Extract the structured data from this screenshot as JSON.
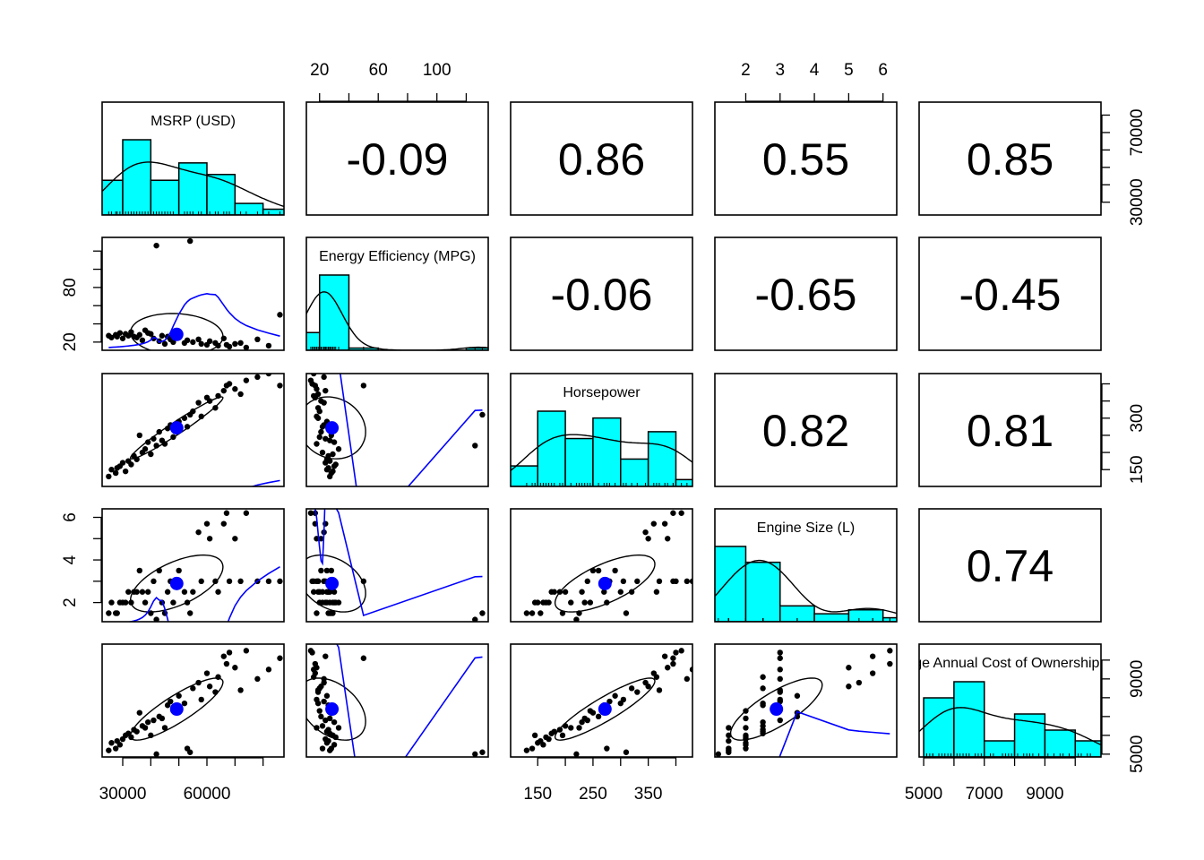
{
  "chart_data": {
    "type": "scatter-matrix",
    "variables": [
      {
        "label": "MSRP (USD)",
        "range": [
          22660,
          87450
        ],
        "hist": {
          "edges": [
            20000,
            30000,
            40000,
            50000,
            60000,
            70000,
            80000,
            90000
          ],
          "counts": [
            6,
            13,
            6,
            9,
            7,
            2,
            1
          ]
        },
        "values": [
          25000,
          26000,
          27500,
          28000,
          29000,
          30000,
          31000,
          32000,
          33000,
          34000,
          35000,
          36000,
          37000,
          38000,
          39000,
          40000,
          41000,
          42000,
          43000,
          44000,
          45000,
          46000,
          47000,
          48000,
          50000,
          52000,
          53000,
          54000,
          55000,
          57000,
          58000,
          60000,
          61000,
          63000,
          64000,
          66000,
          67000,
          68000,
          70000,
          72000,
          74000,
          78000,
          82000,
          86000
        ]
      },
      {
        "label": "Energy Efficiency (MPG)",
        "range": [
          11,
          135
        ],
        "hist": {
          "edges": [
            0,
            20,
            40,
            60,
            80,
            100,
            120,
            140
          ],
          "counts": [
            8,
            34,
            1,
            0,
            0,
            0,
            1
          ]
        },
        "values": [
          27,
          25,
          28,
          26,
          30,
          24,
          29,
          27,
          31,
          26,
          25,
          28,
          22,
          33,
          30,
          29,
          24,
          126,
          21,
          27,
          18,
          26,
          23,
          20,
          25,
          19,
          22,
          131,
          20,
          23,
          18,
          17,
          21,
          19,
          16,
          24,
          17,
          15,
          18,
          19,
          14,
          23,
          16,
          50
        ]
      },
      {
        "label": "Horsepower",
        "range": [
          101,
          430
        ],
        "hist": {
          "edges": [
            100,
            150,
            200,
            250,
            300,
            350,
            400,
            450
          ],
          "counts": [
            3,
            11,
            7,
            10,
            4,
            8,
            1
          ]
        },
        "values": [
          130,
          150,
          140,
          155,
          160,
          170,
          145,
          175,
          165,
          190,
          180,
          250,
          200,
          210,
          230,
          195,
          240,
          220,
          260,
          235,
          225,
          270,
          280,
          245,
          290,
          300,
          275,
          310,
          320,
          345,
          305,
          360,
          350,
          330,
          365,
          380,
          395,
          400,
          385,
          370,
          410,
          420,
          430,
          395
        ]
      },
      {
        "label": "Engine Size (L)",
        "range": [
          1.1,
          6.4
        ],
        "hist": {
          "edges": [
            1,
            2,
            3,
            4,
            5,
            6,
            7
          ],
          "counts": [
            19,
            15,
            4,
            2,
            3,
            1
          ]
        },
        "values": [
          1.5,
          2.0,
          1.5,
          1.5,
          2.0,
          2.0,
          2.0,
          2.5,
          2.0,
          2.5,
          2.5,
          3.5,
          2.5,
          2.0,
          2.5,
          1.5,
          3.0,
          1.2,
          3.5,
          2.0,
          1.5,
          2.5,
          3.0,
          2.0,
          3.5,
          2.5,
          2.0,
          1.5,
          2.5,
          5.3,
          3.0,
          5.7,
          5.0,
          3.0,
          2.5,
          5.7,
          6.2,
          3.0,
          5.0,
          3.0,
          6.2,
          3.0,
          3.0,
          3.0
        ]
      },
      {
        "label": "Average Annual Cost of Ownership (USD)",
        "range": [
          4850,
          10850
        ],
        "hist": {
          "edges": [
            5000,
            6000,
            7000,
            8000,
            9000,
            10000,
            11000
          ],
          "counts": [
            11,
            14,
            3,
            8,
            5,
            3
          ]
        },
        "values": [
          5200,
          5600,
          5300,
          5700,
          5500,
          5800,
          6000,
          6100,
          5900,
          6300,
          6200,
          7200,
          6500,
          6400,
          6700,
          6000,
          6800,
          5000,
          7000,
          6900,
          6400,
          7600,
          7800,
          7300,
          8100,
          7700,
          5300,
          5100,
          8500,
          8800,
          7900,
          9300,
          8600,
          8300,
          9100,
          10200,
          9800,
          10400,
          9600,
          8400,
          10500,
          9000,
          9500,
          10100
        ]
      }
    ],
    "correlations": [
      {
        "row": 0,
        "col": 1,
        "text": "-0.09"
      },
      {
        "row": 0,
        "col": 2,
        "text": "0.86"
      },
      {
        "row": 0,
        "col": 3,
        "text": "0.55"
      },
      {
        "row": 0,
        "col": 4,
        "text": "0.85"
      },
      {
        "row": 1,
        "col": 2,
        "text": "-0.06"
      },
      {
        "row": 1,
        "col": 3,
        "text": "-0.65"
      },
      {
        "row": 1,
        "col": 4,
        "text": "-0.45"
      },
      {
        "row": 2,
        "col": 3,
        "text": "0.82"
      },
      {
        "row": 2,
        "col": 4,
        "text": "0.81"
      },
      {
        "row": 3,
        "col": 4,
        "text": "0.74"
      }
    ],
    "axes": [
      {
        "var": 1,
        "side": "top",
        "ticks": [
          20,
          40,
          60,
          80,
          100,
          120
        ],
        "tick_labels": [
          "20",
          "60",
          "100"
        ],
        "label_at": [
          20,
          60,
          100
        ]
      },
      {
        "var": 3,
        "side": "top",
        "ticks": [
          2,
          3,
          4,
          5,
          6
        ],
        "tick_labels": [
          "2",
          "3",
          "4",
          "5",
          "6"
        ],
        "label_at": [
          2,
          3,
          4,
          5,
          6
        ]
      },
      {
        "var": 0,
        "side": "right",
        "ticks": [
          30000,
          40000,
          50000,
          60000,
          70000,
          80000
        ],
        "tick_labels": [
          "30000",
          "70000"
        ],
        "label_at": [
          30000,
          70000
        ]
      },
      {
        "var": 2,
        "side": "right",
        "ticks": [
          150,
          200,
          250,
          300,
          350,
          400
        ],
        "tick_labels": [
          "150",
          "300"
        ],
        "label_at": [
          150,
          300
        ]
      },
      {
        "var": 4,
        "side": "right",
        "ticks": [
          5000,
          6000,
          7000,
          8000,
          9000,
          10000
        ],
        "tick_labels": [
          "5000",
          "9000"
        ],
        "label_at": [
          5000,
          9000
        ]
      },
      {
        "var": 1,
        "side": "left",
        "ticks": [
          20,
          40,
          60,
          80,
          100,
          120
        ],
        "tick_labels": [
          "20",
          "80"
        ],
        "label_at": [
          20,
          80
        ]
      },
      {
        "var": 3,
        "side": "left",
        "ticks": [
          2,
          3,
          4,
          5,
          6
        ],
        "tick_labels": [
          "2",
          "4",
          "6"
        ],
        "label_at": [
          2,
          4,
          6
        ]
      },
      {
        "var": 0,
        "side": "bottom",
        "ticks": [
          30000,
          40000,
          50000,
          60000,
          70000,
          80000
        ],
        "tick_labels": [
          "30000",
          "60000"
        ],
        "label_at": [
          30000,
          60000
        ]
      },
      {
        "var": 2,
        "side": "bottom",
        "ticks": [
          150,
          200,
          250,
          300,
          350,
          400
        ],
        "tick_labels": [
          "150",
          "250",
          "350"
        ],
        "label_at": [
          150,
          250,
          350
        ]
      },
      {
        "var": 4,
        "side": "bottom",
        "ticks": [
          5000,
          6000,
          7000,
          8000,
          9000,
          10000
        ],
        "tick_labels": [
          "5000",
          "7000",
          "9000"
        ],
        "label_at": [
          5000,
          7000,
          9000
        ]
      }
    ],
    "colors": {
      "histogram": "#00ffff",
      "smooth": "#0000ff",
      "mean": "#0000ff",
      "points": "#000000"
    },
    "lower": "scatter with lowess smooth, correlation ellipse and mean",
    "diagonal": "histogram with density curve",
    "upper": "correlation coefficients"
  }
}
